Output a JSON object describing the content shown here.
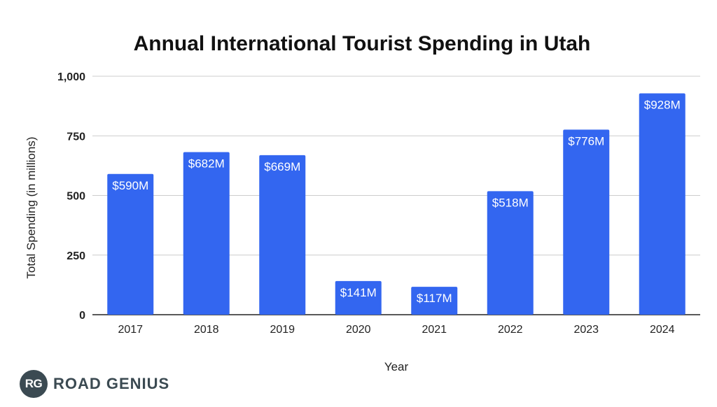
{
  "brand": {
    "badge": "RG",
    "name": "ROAD GENIUS"
  },
  "colors": {
    "bar": "#3366f0",
    "grid": "#cccccc",
    "axis": "#222222"
  },
  "chart_data": {
    "type": "bar",
    "title": "Annual International Tourist Spending in Utah",
    "xlabel": "Year",
    "ylabel": "Total Spending (in millions)",
    "categories": [
      "2017",
      "2018",
      "2019",
      "2020",
      "2021",
      "2022",
      "2023",
      "2024"
    ],
    "values": [
      590,
      682,
      669,
      141,
      117,
      518,
      776,
      928
    ],
    "data_labels": [
      "$590M",
      "$682M",
      "$669M",
      "$141M",
      "$117M",
      "$518M",
      "$776M",
      "$928M"
    ],
    "ylim": [
      0,
      1000
    ],
    "yticks": [
      0,
      250,
      500,
      750,
      1000
    ],
    "ytick_labels": [
      "0",
      "250",
      "500",
      "750",
      "1,000"
    ],
    "grid": true,
    "legend": "none"
  }
}
